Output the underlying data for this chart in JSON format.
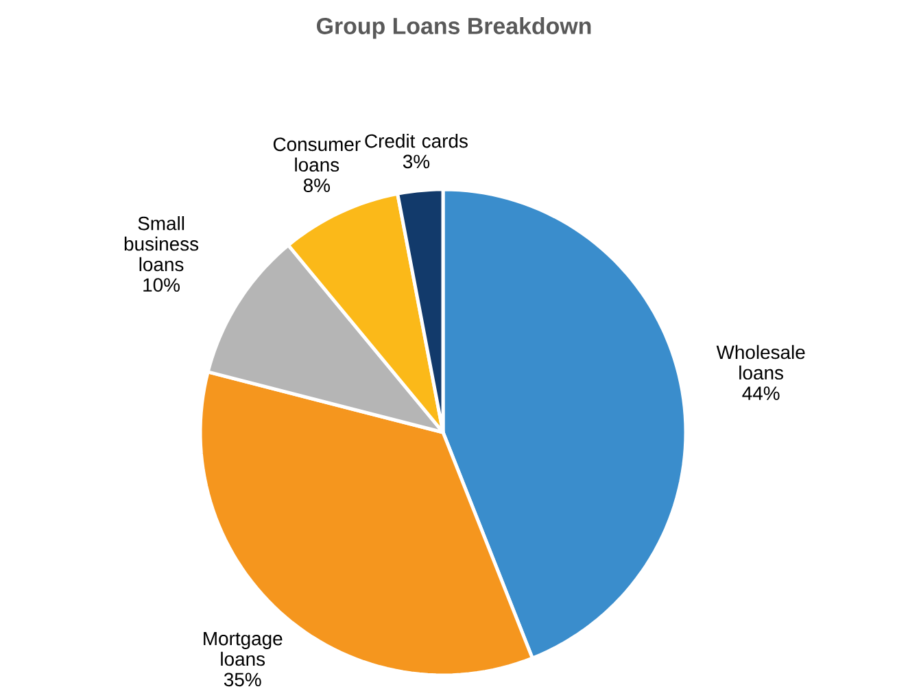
{
  "chart_data": {
    "type": "pie",
    "title": "Group Loans Breakdown",
    "categories": [
      "Wholesale loans",
      "Mortgage loans",
      "Small business loans",
      "Consumer loans",
      "Credit cards"
    ],
    "values": [
      44,
      35,
      10,
      8,
      3
    ],
    "value_labels": [
      "44%",
      "35%",
      "10%",
      "8%",
      "3%"
    ],
    "colors": [
      "#3a8dcc",
      "#f5961e",
      "#b5b5b5",
      "#fbb919",
      "#123a6b"
    ]
  }
}
